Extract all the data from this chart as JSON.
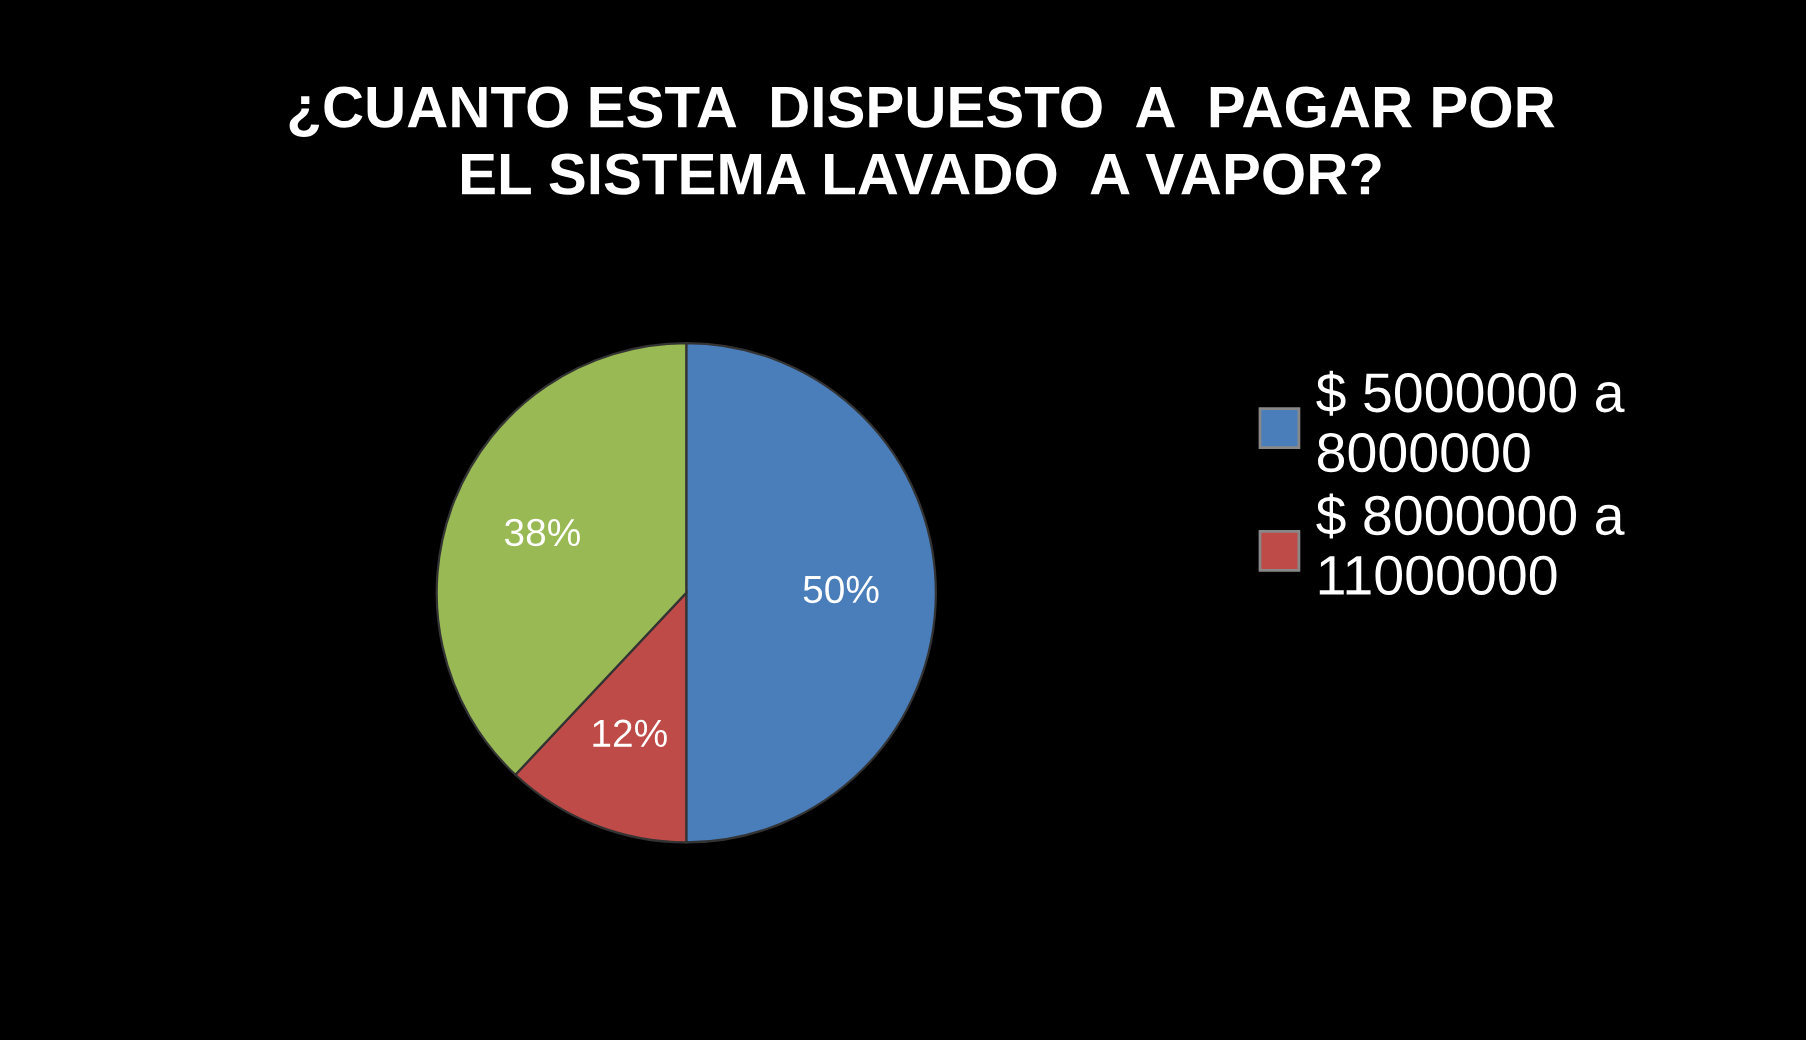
{
  "chart_data": {
    "type": "pie",
    "title": "¿CUANTO ESTA  DISPUESTO  A  PAGAR POR\nEL SISTEMA LAVADO  A VAPOR?",
    "categories": [
      "$ 5000000 a 8000000",
      "$ 8000000 a 11000000",
      null
    ],
    "values": [
      50,
      12,
      38
    ],
    "colors": [
      "#4a7ebb",
      "#be4b48",
      "#98b954"
    ],
    "value_labels": [
      "50%",
      "12%",
      "38%"
    ],
    "legend": "right"
  }
}
